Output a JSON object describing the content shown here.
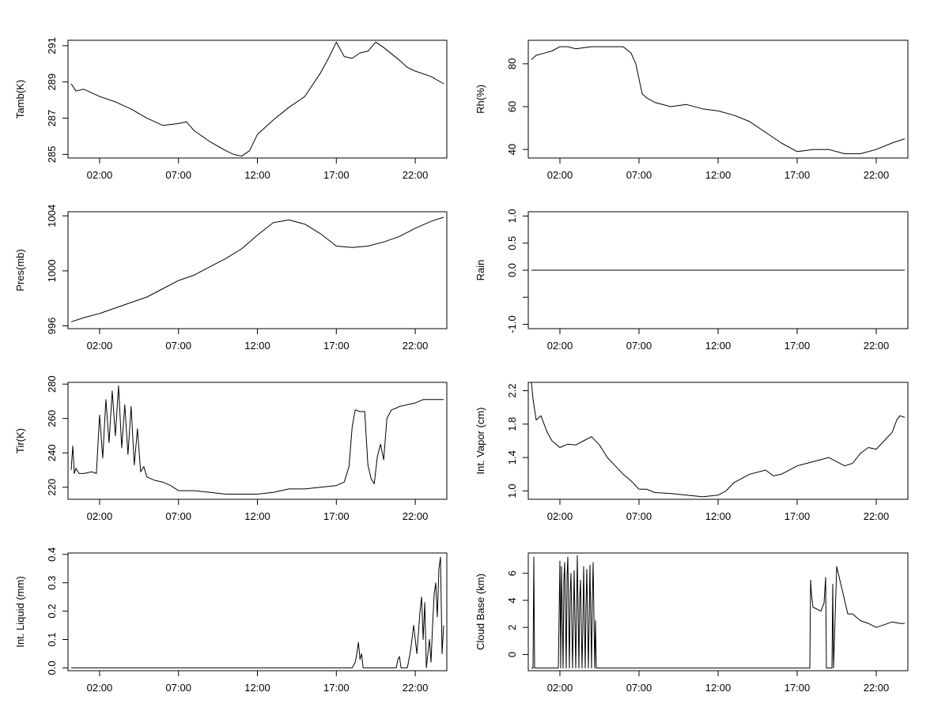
{
  "chart_data": [
    {
      "type": "line",
      "ylabel": "Tamb(K)",
      "xticks": [
        "02:00",
        "07:00",
        "12:00",
        "17:00",
        "22:00"
      ],
      "yticks": [
        {
          "v": 285,
          "label": "285"
        },
        {
          "v": 287,
          "label": "287"
        },
        {
          "v": 289,
          "label": "289"
        },
        {
          "v": 291,
          "label": "291"
        }
      ],
      "xlim": [
        0,
        24
      ],
      "ylim": [
        284.8,
        291.3
      ],
      "series": [
        {
          "x": [
            0.2,
            0.5,
            1.0,
            2.0,
            3.0,
            4.0,
            5.0,
            6.0,
            7.0,
            7.5,
            8.0,
            9.0,
            10.0,
            10.5,
            11.0,
            11.5,
            12.0,
            13.0,
            14.0,
            15.0,
            16.0,
            16.5,
            17.0,
            17.5,
            18.0,
            18.5,
            19.0,
            19.5,
            20.0,
            21.0,
            21.5,
            22.0,
            23.0,
            23.8
          ],
          "y": [
            288.9,
            288.5,
            288.6,
            288.2,
            287.9,
            287.5,
            287.0,
            286.6,
            286.7,
            286.8,
            286.3,
            285.7,
            285.2,
            285.0,
            284.9,
            285.2,
            286.1,
            286.9,
            287.6,
            288.2,
            289.5,
            290.3,
            291.2,
            290.4,
            290.3,
            290.6,
            290.7,
            291.2,
            290.9,
            290.2,
            289.8,
            289.6,
            289.3,
            288.9
          ]
        }
      ]
    },
    {
      "type": "line",
      "ylabel": "Rh(%)",
      "xticks": [
        "02:00",
        "07:00",
        "12:00",
        "17:00",
        "22:00"
      ],
      "yticks": [
        {
          "v": 40,
          "label": "40"
        },
        {
          "v": 60,
          "label": "60"
        },
        {
          "v": 80,
          "label": "80"
        }
      ],
      "xlim": [
        0,
        24
      ],
      "ylim": [
        36,
        91
      ],
      "series": [
        {
          "x": [
            0.2,
            0.5,
            1.0,
            1.5,
            2.0,
            2.5,
            3.0,
            4.0,
            5.0,
            6.0,
            6.5,
            6.8,
            7.0,
            7.2,
            7.5,
            8.0,
            9.0,
            10.0,
            11.0,
            12.0,
            13.0,
            14.0,
            15.0,
            16.0,
            17.0,
            18.0,
            19.0,
            20.0,
            21.0,
            22.0,
            23.0,
            23.8
          ],
          "y": [
            82,
            84,
            85,
            86,
            88,
            88,
            87,
            88,
            88,
            88,
            85,
            80,
            73,
            66,
            64,
            62,
            60,
            61,
            59,
            58,
            56,
            53,
            48,
            43,
            39,
            40,
            40,
            38,
            38,
            40,
            43,
            45
          ]
        }
      ]
    },
    {
      "type": "line",
      "ylabel": "Pres(mb)",
      "xticks": [
        "02:00",
        "07:00",
        "12:00",
        "17:00",
        "22:00"
      ],
      "yticks": [
        {
          "v": 996,
          "label": "996"
        },
        {
          "v": 1000,
          "label": "1000"
        },
        {
          "v": 1004,
          "label": "1004"
        }
      ],
      "xlim": [
        0,
        24
      ],
      "ylim": [
        995.8,
        1004.3
      ],
      "series": [
        {
          "x": [
            0.2,
            1.0,
            2.0,
            3.0,
            4.0,
            5.0,
            6.0,
            7.0,
            8.0,
            9.0,
            10.0,
            11.0,
            12.0,
            13.0,
            14.0,
            15.0,
            16.0,
            17.0,
            18.0,
            19.0,
            20.0,
            21.0,
            22.0,
            23.0,
            23.8
          ],
          "y": [
            996.3,
            996.6,
            996.9,
            997.3,
            997.7,
            998.1,
            998.7,
            999.3,
            999.7,
            1000.3,
            1000.9,
            1001.6,
            1002.6,
            1003.5,
            1003.7,
            1003.4,
            1002.7,
            1001.8,
            1001.7,
            1001.8,
            1002.1,
            1002.5,
            1003.1,
            1003.6,
            1003.9
          ]
        }
      ]
    },
    {
      "type": "line",
      "ylabel": "Rain",
      "xticks": [
        "02:00",
        "07:00",
        "12:00",
        "17:00",
        "22:00"
      ],
      "yticks": [
        {
          "v": -1.0,
          "label": "-1.0"
        },
        {
          "v": -0.5,
          "label": ""
        },
        {
          "v": 0.0,
          "label": "0.0"
        },
        {
          "v": 0.5,
          "label": "0.5"
        },
        {
          "v": 1.0,
          "label": "1.0"
        }
      ],
      "xlim": [
        0,
        24
      ],
      "ylim": [
        -1.08,
        1.08
      ],
      "series": [
        {
          "x": [
            0.2,
            23.8
          ],
          "y": [
            0,
            0
          ]
        }
      ]
    },
    {
      "type": "line",
      "ylabel": "Tir(K)",
      "xticks": [
        "02:00",
        "07:00",
        "12:00",
        "17:00",
        "22:00"
      ],
      "yticks": [
        {
          "v": 220,
          "label": "220"
        },
        {
          "v": 240,
          "label": "240"
        },
        {
          "v": 260,
          "label": "260"
        },
        {
          "v": 280,
          "label": "280"
        }
      ],
      "xlim": [
        0,
        24
      ],
      "ylim": [
        213,
        281
      ],
      "series": [
        {
          "x": [
            0.2,
            0.3,
            0.4,
            0.5,
            0.7,
            1.0,
            1.5,
            1.8,
            2.0,
            2.2,
            2.4,
            2.6,
            2.8,
            3.0,
            3.2,
            3.4,
            3.6,
            3.8,
            4.0,
            4.2,
            4.4,
            4.6,
            4.8,
            5.0,
            5.5,
            6.0,
            6.5,
            7.0,
            8.0,
            9.0,
            10.0,
            11.0,
            12.0,
            13.0,
            14.0,
            15.0,
            16.0,
            17.0,
            17.5,
            17.8,
            18.0,
            18.2,
            18.5,
            18.8,
            19.0,
            19.2,
            19.4,
            19.6,
            19.8,
            20.0,
            20.2,
            20.5,
            20.8,
            21.0,
            21.5,
            22.0,
            22.5,
            23.0,
            23.8
          ],
          "y": [
            230,
            244,
            228,
            231,
            228,
            228,
            229,
            228,
            262,
            237,
            271,
            246,
            276,
            250,
            279,
            243,
            268,
            239,
            267,
            233,
            254,
            229,
            232,
            226,
            224,
            223,
            221,
            218,
            218,
            217,
            216,
            216,
            216,
            217,
            219,
            219,
            220,
            221,
            223,
            232,
            255,
            265,
            264,
            264,
            233,
            225,
            222,
            238,
            245,
            236,
            260,
            265,
            266,
            267,
            268,
            269,
            271,
            271,
            271
          ]
        }
      ]
    },
    {
      "type": "line",
      "ylabel": "Int. Vapor (cm)",
      "xticks": [
        "02:00",
        "07:00",
        "12:00",
        "17:00",
        "22:00"
      ],
      "yticks": [
        {
          "v": 1.0,
          "label": "1.0"
        },
        {
          "v": 1.4,
          "label": "1.4"
        },
        {
          "v": 1.8,
          "label": "1.8"
        },
        {
          "v": 2.2,
          "label": "2.2"
        }
      ],
      "xlim": [
        0,
        24
      ],
      "ylim": [
        0.9,
        2.3
      ],
      "series": [
        {
          "x": [
            0.2,
            0.3,
            0.5,
            0.8,
            1.0,
            1.2,
            1.5,
            2.0,
            2.5,
            3.0,
            3.5,
            4.0,
            4.5,
            5.0,
            5.5,
            6.0,
            6.5,
            7.0,
            7.5,
            8.0,
            9.0,
            10.0,
            11.0,
            12.0,
            12.5,
            13.0,
            14.0,
            15.0,
            15.5,
            16.0,
            17.0,
            18.0,
            19.0,
            20.0,
            20.5,
            21.0,
            21.5,
            22.0,
            22.5,
            23.0,
            23.3,
            23.5,
            23.8
          ],
          "y": [
            2.3,
            2.1,
            1.85,
            1.9,
            1.8,
            1.7,
            1.6,
            1.52,
            1.56,
            1.55,
            1.6,
            1.65,
            1.55,
            1.4,
            1.3,
            1.2,
            1.12,
            1.02,
            1.02,
            0.98,
            0.97,
            0.95,
            0.93,
            0.95,
            1.0,
            1.1,
            1.2,
            1.25,
            1.18,
            1.2,
            1.3,
            1.35,
            1.4,
            1.3,
            1.33,
            1.45,
            1.52,
            1.5,
            1.6,
            1.7,
            1.85,
            1.9,
            1.88
          ]
        }
      ]
    },
    {
      "type": "line",
      "ylabel": "Int. Liquid (mm)",
      "xticks": [
        "02:00",
        "07:00",
        "12:00",
        "17:00",
        "22:00"
      ],
      "yticks": [
        {
          "v": 0.0,
          "label": "0.0"
        },
        {
          "v": 0.1,
          "label": "0.1"
        },
        {
          "v": 0.2,
          "label": "0.2"
        },
        {
          "v": 0.3,
          "label": "0.3"
        },
        {
          "v": 0.4,
          "label": "0.4"
        }
      ],
      "xlim": [
        0,
        24
      ],
      "ylim": [
        -0.01,
        0.405
      ],
      "series": [
        {
          "x": [
            0.2,
            18.0,
            18.2,
            18.3,
            18.4,
            18.5,
            18.6,
            18.7,
            19.0,
            20.8,
            20.9,
            21.0,
            21.1,
            21.5,
            21.7,
            21.9,
            22.1,
            22.3,
            22.4,
            22.5,
            22.6,
            22.7,
            22.8,
            22.9,
            23.0,
            23.1,
            23.2,
            23.3,
            23.4,
            23.5,
            23.6,
            23.7,
            23.8
          ],
          "y": [
            0.0,
            0.0,
            0.02,
            0.05,
            0.09,
            0.03,
            0.05,
            0.0,
            0.0,
            0.0,
            0.03,
            0.04,
            0.0,
            0.0,
            0.06,
            0.15,
            0.05,
            0.2,
            0.25,
            0.1,
            0.23,
            0.0,
            0.05,
            0.1,
            0.02,
            0.15,
            0.26,
            0.3,
            0.18,
            0.35,
            0.39,
            0.05,
            0.15
          ]
        }
      ]
    },
    {
      "type": "line",
      "ylabel": "Cloud Base (km)",
      "xticks": [
        "02:00",
        "07:00",
        "12:00",
        "17:00",
        "22:00"
      ],
      "yticks": [
        {
          "v": 0,
          "label": "0"
        },
        {
          "v": 2,
          "label": "2"
        },
        {
          "v": 4,
          "label": "4"
        },
        {
          "v": 6,
          "label": "6"
        }
      ],
      "xlim": [
        0,
        24
      ],
      "ylim": [
        -1.2,
        7.5
      ],
      "series": [
        {
          "x": [
            0.2,
            0.3,
            0.35,
            0.4,
            0.5,
            1.9,
            2.0,
            2.05,
            2.1,
            2.2,
            2.25,
            2.3,
            2.4,
            2.45,
            2.5,
            2.6,
            2.65,
            2.7,
            2.8,
            2.85,
            2.9,
            3.0,
            3.05,
            3.1,
            3.2,
            3.25,
            3.3,
            3.4,
            3.45,
            3.5,
            3.6,
            3.65,
            3.7,
            3.8,
            3.85,
            3.9,
            4.0,
            4.05,
            4.1,
            4.2,
            4.25,
            4.3,
            4.5,
            17.8,
            17.85,
            17.9,
            18.0,
            18.5,
            18.7,
            18.8,
            18.85,
            19.2,
            19.25,
            19.3,
            19.5,
            19.6,
            19.8,
            20.0,
            20.2,
            20.5,
            21.0,
            21.5,
            22.0,
            22.5,
            23.0,
            23.5,
            23.8
          ],
          "y": [
            -1,
            -1,
            7.2,
            -1,
            -1,
            -1,
            6.9,
            -1,
            6.5,
            -1,
            5.5,
            6.8,
            -1,
            5.8,
            7.2,
            -1,
            4.5,
            6.0,
            -1,
            2.5,
            6.2,
            -1,
            3.0,
            7.3,
            -1,
            4.0,
            5.5,
            -1,
            2.0,
            6.5,
            -1,
            3.5,
            6.3,
            -1,
            2.5,
            6.6,
            -1,
            4.0,
            6.8,
            -1,
            2.5,
            -1,
            -1,
            -1,
            5.5,
            4.5,
            3.5,
            3.2,
            3.8,
            5.7,
            -1,
            -1,
            5.2,
            -1,
            6.5,
            6.0,
            5.0,
            4.0,
            3.0,
            3.0,
            2.5,
            2.3,
            2.0,
            2.2,
            2.4,
            2.3,
            2.3
          ]
        }
      ]
    }
  ]
}
